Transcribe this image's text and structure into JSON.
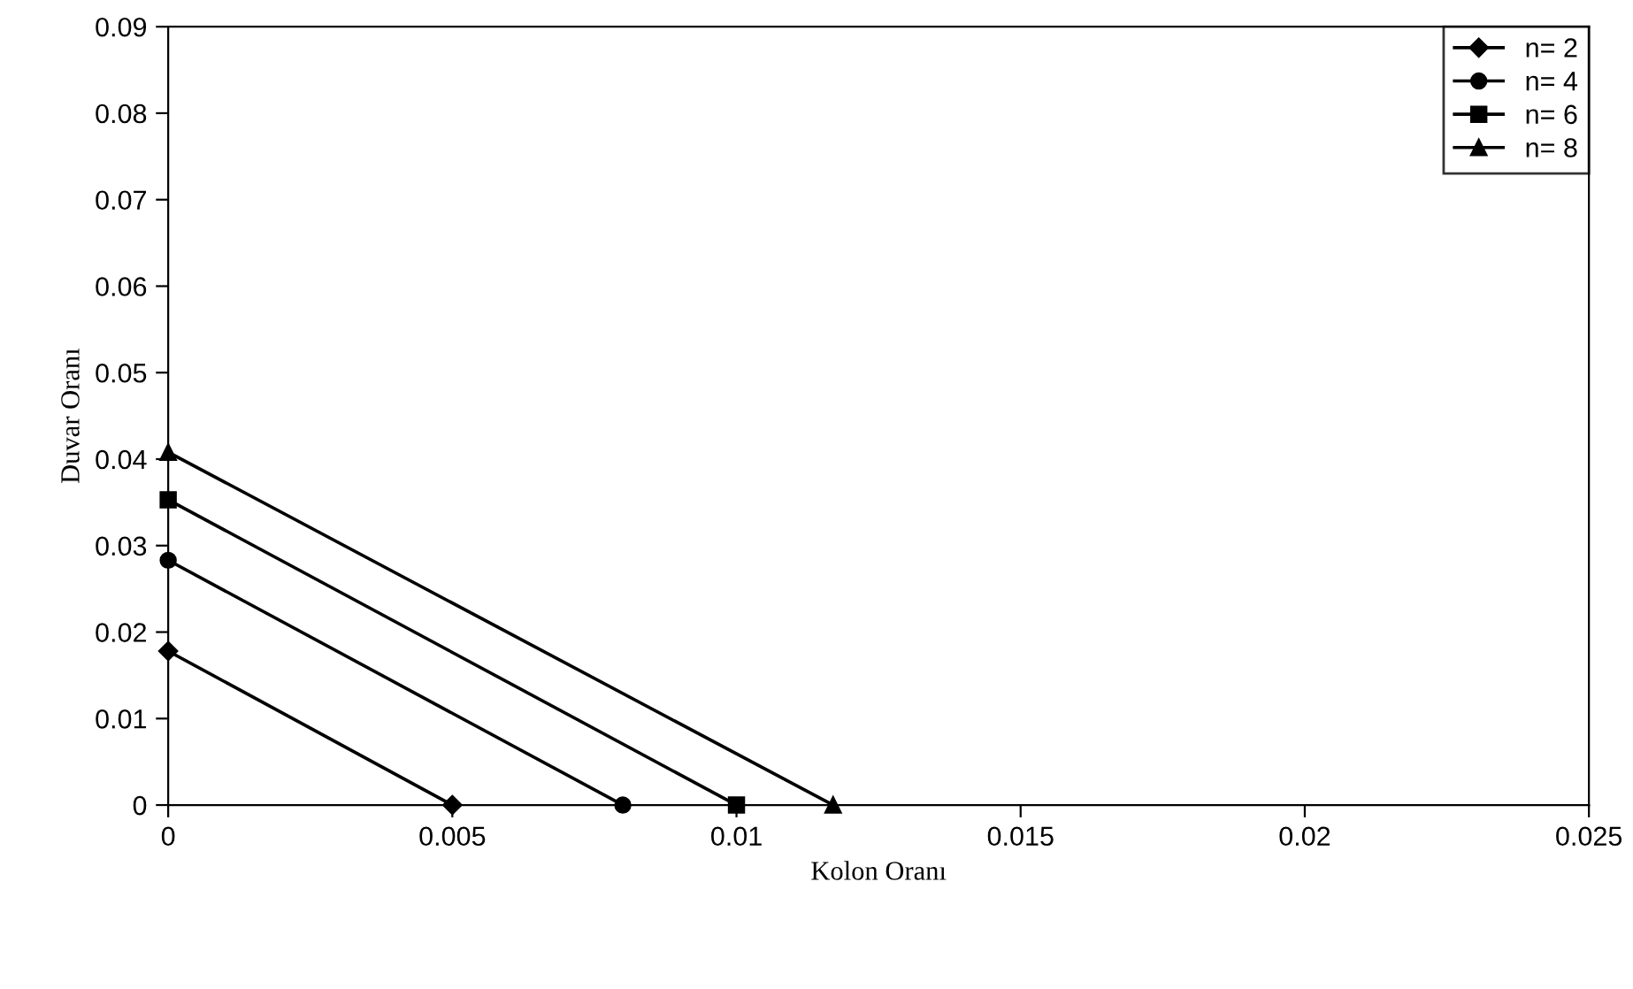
{
  "chart_data": {
    "type": "line",
    "xlabel": "Kolon Oranı",
    "ylabel": "Duvar Oranı",
    "series": [
      {
        "name": "n= 2",
        "color": "#000000",
        "marker": "diamond",
        "x": [
          0,
          0.005
        ],
        "values": [
          0.0178,
          0
        ]
      },
      {
        "name": "n= 4",
        "color": "#000000",
        "marker": "circle",
        "x": [
          0,
          0.008
        ],
        "values": [
          0.0283,
          0
        ]
      },
      {
        "name": "n= 6",
        "color": "#000000",
        "marker": "square",
        "x": [
          0,
          0.01
        ],
        "values": [
          0.0353,
          0
        ]
      },
      {
        "name": "n= 8",
        "color": "#000000",
        "marker": "triangle",
        "x": [
          0,
          0.0117
        ],
        "values": [
          0.0408,
          0
        ]
      }
    ],
    "xlim": [
      0,
      0.025
    ],
    "xticks": [
      0,
      0.005,
      0.01,
      0.015,
      0.02,
      0.025
    ],
    "ylim": [
      0,
      0.09
    ],
    "yticks": [
      0,
      0.01,
      0.02,
      0.03,
      0.04,
      0.05,
      0.06,
      0.07,
      0.08,
      0.09
    ],
    "grid": false,
    "legend": "top right",
    "line_style": "solid"
  }
}
